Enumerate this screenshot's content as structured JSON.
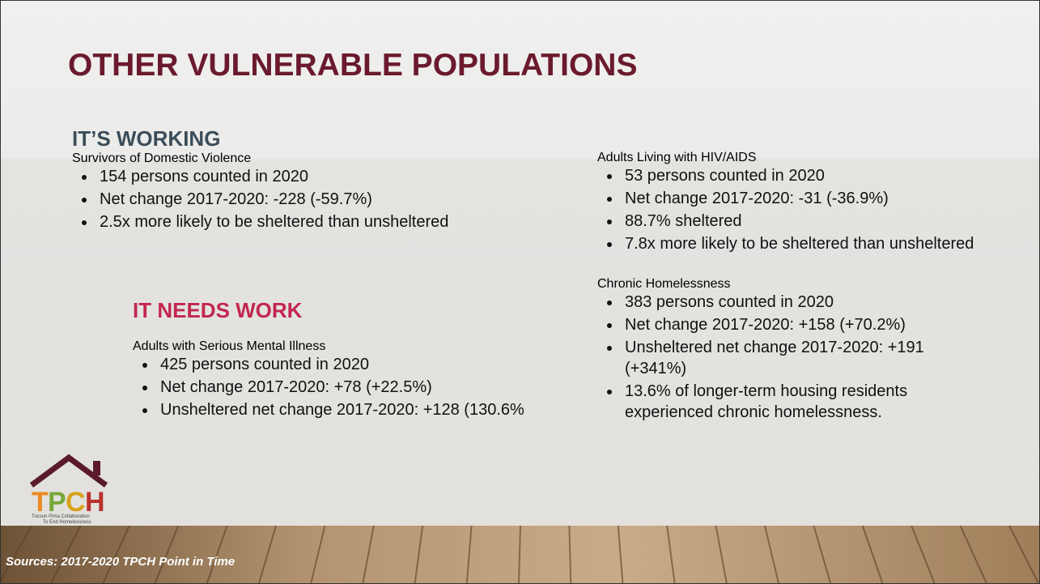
{
  "title": "OTHER VULNERABLE POPULATIONS",
  "working": {
    "heading": "IT’S WORKING",
    "groups": [
      {
        "title": "Survivors of Domestic Violence",
        "bullets": [
          "154 persons counted in 2020",
          "Net change 2017-2020: -228 (-59.7%)",
          "2.5x more likely to be sheltered than unsheltered"
        ]
      }
    ]
  },
  "needs_work": {
    "heading": "IT NEEDS WORK",
    "groups": [
      {
        "title": "Adults with Serious Mental Illness",
        "bullets": [
          "425 persons counted in 2020",
          "Net change 2017-2020: +78 (+22.5%)",
          "Unsheltered net change 2017-2020: +128 (130.6%"
        ]
      }
    ]
  },
  "right": {
    "groups": [
      {
        "title": "Adults Living with HIV/AIDS",
        "bullets": [
          "53 persons counted in 2020",
          "Net change 2017-2020: -31 (-36.9%)",
          "88.7% sheltered",
          "7.8x more likely to be sheltered than unsheltered"
        ]
      },
      {
        "title": "Chronic Homelessness",
        "bullets": [
          "383 persons counted in 2020",
          "Net change 2017-2020: +158 (+70.2%)",
          "Unsheltered net change 2017-2020: +191 (+341%)",
          "13.6% of longer-term housing residents experienced chronic homelessness."
        ]
      }
    ]
  },
  "logo": {
    "letters": [
      "T",
      "P",
      "C",
      "H"
    ],
    "line1": "Tucson Pima Collaboration",
    "line2": "To End Homelessness"
  },
  "footer": "Sources: 2017-2020 TPCH Point in Time"
}
